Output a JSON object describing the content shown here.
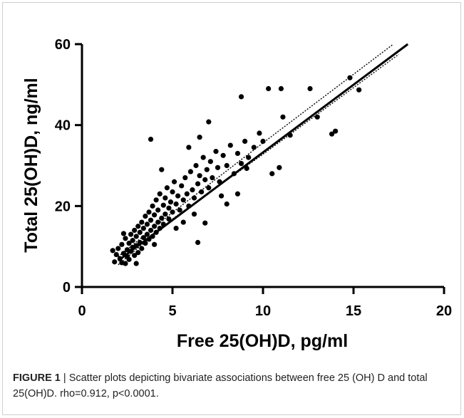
{
  "caption": {
    "lead": "FIGURE 1",
    "text": " | Scatter plots depicting bivariate associations between free 25 (OH) D and total 25(OH)D. rho=0.912, p<0.0001."
  },
  "chart_data": {
    "type": "scatter",
    "xlabel": "Free 25(OH)D, pg/ml",
    "ylabel": "Total 25(OH)D, ng/ml",
    "xlim": [
      0,
      20
    ],
    "ylim": [
      0,
      60
    ],
    "xticks": [
      "0",
      "5",
      "10",
      "15",
      "20"
    ],
    "yticks": [
      "0",
      "20",
      "40",
      "60"
    ],
    "grid": false,
    "colors": {
      "points": "#000000",
      "fit": "#000000",
      "ci": "#000000"
    },
    "fit_line": {
      "x": [
        2.0,
        18.0
      ],
      "y": [
        6.5,
        60.0
      ]
    },
    "ci_upper": {
      "x": [
        2.0,
        5.0,
        10.0,
        17.2
      ],
      "y": [
        7.5,
        18.4,
        35.6,
        60.0
      ]
    },
    "ci_lower": {
      "x": [
        2.0,
        5.0,
        10.0,
        17.5
      ],
      "y": [
        5.5,
        16.8,
        32.8,
        57.5
      ]
    },
    "points": [
      [
        1.7,
        9.0
      ],
      [
        1.8,
        6.2
      ],
      [
        1.9,
        8.0
      ],
      [
        2.0,
        9.5
      ],
      [
        2.1,
        7.0
      ],
      [
        2.2,
        10.5
      ],
      [
        2.2,
        6.0
      ],
      [
        2.3,
        8.3
      ],
      [
        2.4,
        5.8
      ],
      [
        2.4,
        12.0
      ],
      [
        2.5,
        9.2
      ],
      [
        2.5,
        7.5
      ],
      [
        2.6,
        10.8
      ],
      [
        2.6,
        6.8
      ],
      [
        2.7,
        13.0
      ],
      [
        2.7,
        8.8
      ],
      [
        2.8,
        11.5
      ],
      [
        2.8,
        9.8
      ],
      [
        2.9,
        7.8
      ],
      [
        2.9,
        14.0
      ],
      [
        3.0,
        10.2
      ],
      [
        3.0,
        12.5
      ],
      [
        3.1,
        8.5
      ],
      [
        3.1,
        15.0
      ],
      [
        3.2,
        11.0
      ],
      [
        3.2,
        13.5
      ],
      [
        3.3,
        9.5
      ],
      [
        3.3,
        16.0
      ],
      [
        3.4,
        12.2
      ],
      [
        3.4,
        14.5
      ],
      [
        3.5,
        10.8
      ],
      [
        3.5,
        17.5
      ],
      [
        3.6,
        13.0
      ],
      [
        3.6,
        15.5
      ],
      [
        3.7,
        11.8
      ],
      [
        3.7,
        18.5
      ],
      [
        3.8,
        14.0
      ],
      [
        3.8,
        16.5
      ],
      [
        3.9,
        12.5
      ],
      [
        3.9,
        20.0
      ],
      [
        4.0,
        15.0
      ],
      [
        4.0,
        17.8
      ],
      [
        4.1,
        13.5
      ],
      [
        4.1,
        21.5
      ],
      [
        4.2,
        16.0
      ],
      [
        4.2,
        19.0
      ],
      [
        4.3,
        14.5
      ],
      [
        4.3,
        23.0
      ],
      [
        4.4,
        17.0
      ],
      [
        4.5,
        20.2
      ],
      [
        4.5,
        15.5
      ],
      [
        4.6,
        22.0
      ],
      [
        4.6,
        18.0
      ],
      [
        4.7,
        24.5
      ],
      [
        4.8,
        19.5
      ],
      [
        4.8,
        16.8
      ],
      [
        4.9,
        21.0
      ],
      [
        5.0,
        23.5
      ],
      [
        5.0,
        18.5
      ],
      [
        5.1,
        26.0
      ],
      [
        5.2,
        20.5
      ],
      [
        5.3,
        22.5
      ],
      [
        5.4,
        19.0
      ],
      [
        5.5,
        25.0
      ],
      [
        5.6,
        21.5
      ],
      [
        5.7,
        27.0
      ],
      [
        5.8,
        23.0
      ],
      [
        5.9,
        20.0
      ],
      [
        6.0,
        28.5
      ],
      [
        6.1,
        24.0
      ],
      [
        6.2,
        22.0
      ],
      [
        6.3,
        30.0
      ],
      [
        6.4,
        25.5
      ],
      [
        6.5,
        27.5
      ],
      [
        6.6,
        23.5
      ],
      [
        6.7,
        32.0
      ],
      [
        6.8,
        26.5
      ],
      [
        6.9,
        29.0
      ],
      [
        7.0,
        24.5
      ],
      [
        7.1,
        31.0
      ],
      [
        7.2,
        27.0
      ],
      [
        7.4,
        33.5
      ],
      [
        7.5,
        29.5
      ],
      [
        7.6,
        26.0
      ],
      [
        7.8,
        32.5
      ],
      [
        8.0,
        30.0
      ],
      [
        8.2,
        35.0
      ],
      [
        8.4,
        28.0
      ],
      [
        8.6,
        33.0
      ],
      [
        8.8,
        30.5
      ],
      [
        9.0,
        36.0
      ],
      [
        9.2,
        32.0
      ],
      [
        9.5,
        34.5
      ],
      [
        9.8,
        38.0
      ],
      [
        10.0,
        36.0
      ],
      [
        3.8,
        36.5
      ],
      [
        6.4,
        11.0
      ],
      [
        6.8,
        15.8
      ],
      [
        7.0,
        40.8
      ],
      [
        8.8,
        47.0
      ],
      [
        10.3,
        49.0
      ],
      [
        11.0,
        49.0
      ],
      [
        12.6,
        49.0
      ],
      [
        11.1,
        42.0
      ],
      [
        13.0,
        42.0
      ],
      [
        10.5,
        28.0
      ],
      [
        10.9,
        29.5
      ],
      [
        11.5,
        37.5
      ],
      [
        13.8,
        37.8
      ],
      [
        14.0,
        38.5
      ],
      [
        14.8,
        51.7
      ],
      [
        15.3,
        48.7
      ],
      [
        9.1,
        29.3
      ],
      [
        7.7,
        22.5
      ],
      [
        8.0,
        20.5
      ],
      [
        8.6,
        23.0
      ],
      [
        5.9,
        34.5
      ],
      [
        6.5,
        37.0
      ],
      [
        3.0,
        5.8
      ],
      [
        2.3,
        13.2
      ],
      [
        4.4,
        29.0
      ],
      [
        5.2,
        14.5
      ],
      [
        4.0,
        10.5
      ],
      [
        5.6,
        16.0
      ],
      [
        6.2,
        18.0
      ]
    ]
  }
}
